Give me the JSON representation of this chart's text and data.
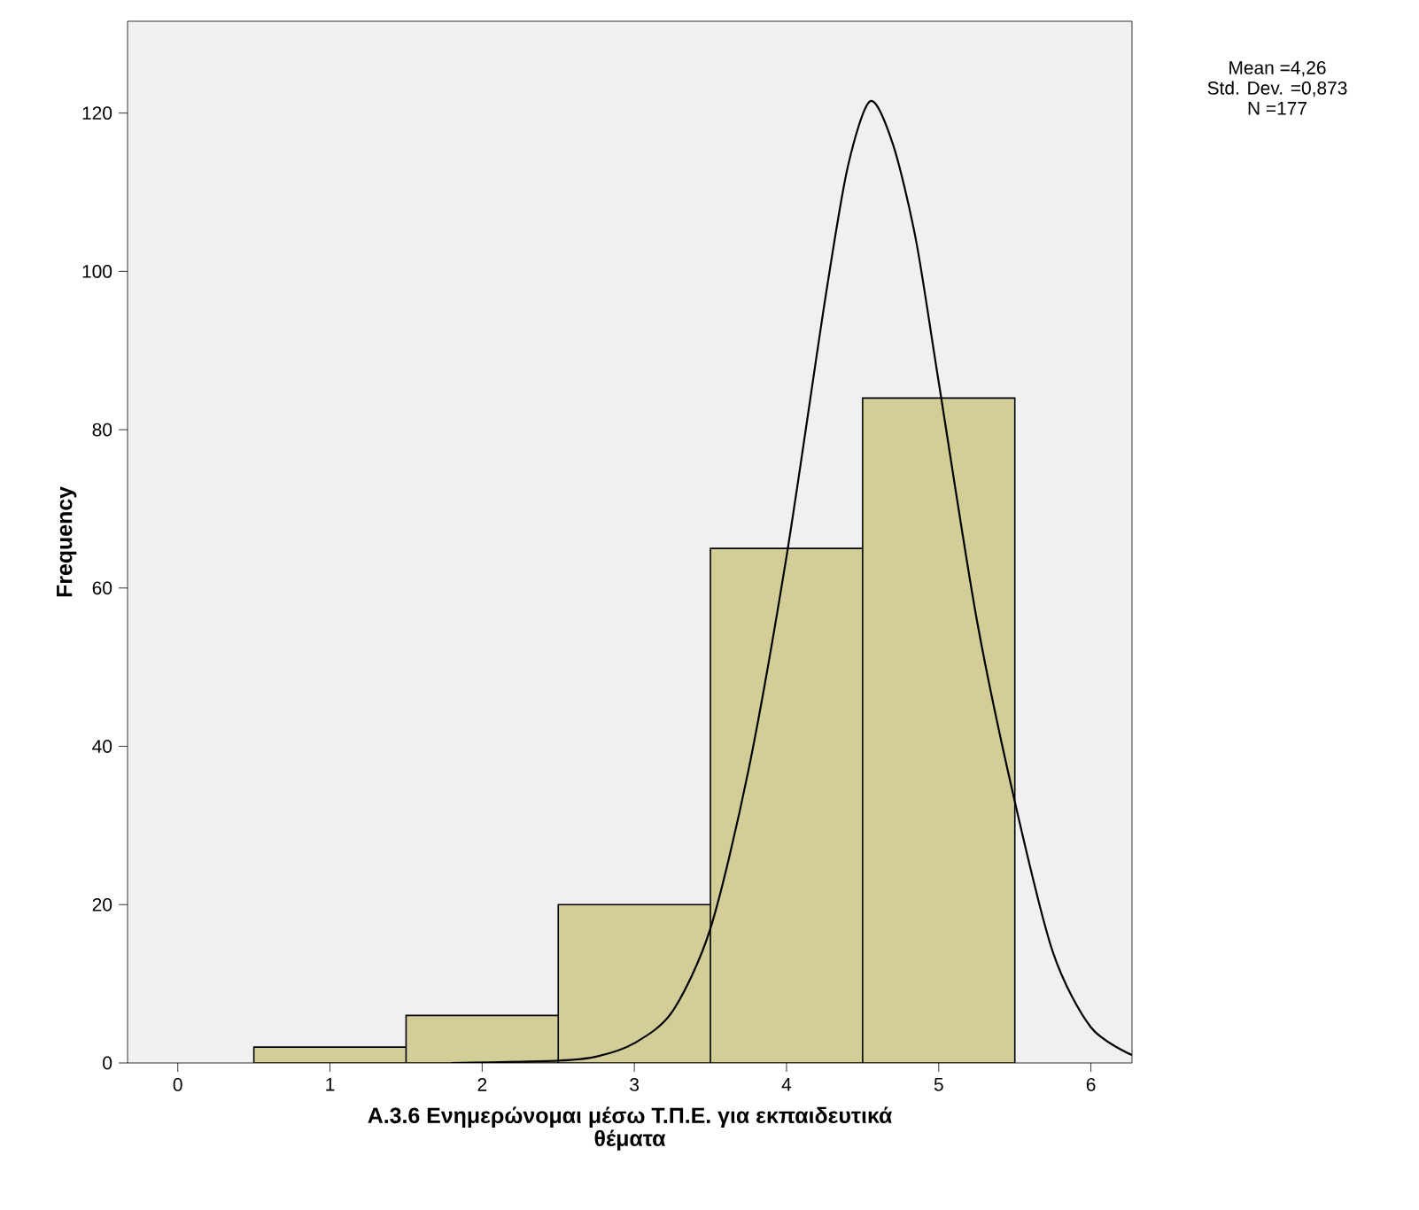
{
  "chart_data": {
    "type": "histogram",
    "xlabel": "A.3.6 Ενημερώνομαι μέσω Τ.Π.Ε.  για εκπαιδευτικά θέματα",
    "ylabel": "Frequency",
    "annotations": [
      "Mean =4,26",
      "Std. Dev. =0,873",
      "N =177"
    ],
    "bins": [
      0.5,
      1.5,
      2.5,
      3.5,
      4.5,
      5.5
    ],
    "series": [
      {
        "type": "histogram",
        "color": "#d3ce98",
        "values": [
          2,
          6,
          20,
          65,
          84
        ]
      },
      {
        "type": "line",
        "color": "#000000",
        "x": [
          1.8,
          2.5,
          2.75,
          3.0,
          3.25,
          3.5,
          3.75,
          4.0,
          4.25,
          4.4,
          4.55,
          4.7,
          4.85,
          5.0,
          5.25,
          5.5,
          5.75,
          6.0,
          6.27
        ],
        "values": [
          0,
          0.3,
          0.8,
          2.5,
          6.5,
          17,
          37,
          64,
          96,
          113,
          121.5,
          116,
          104,
          86,
          56,
          33,
          14,
          4.5,
          1
        ]
      }
    ],
    "xlim": [
      -0.33,
      6.27
    ],
    "ylim": [
      0,
      131.6
    ],
    "xticks": [
      0,
      1,
      2,
      3,
      4,
      5,
      6
    ],
    "yticks": [
      0,
      20,
      40,
      60,
      80,
      100,
      120
    ]
  }
}
